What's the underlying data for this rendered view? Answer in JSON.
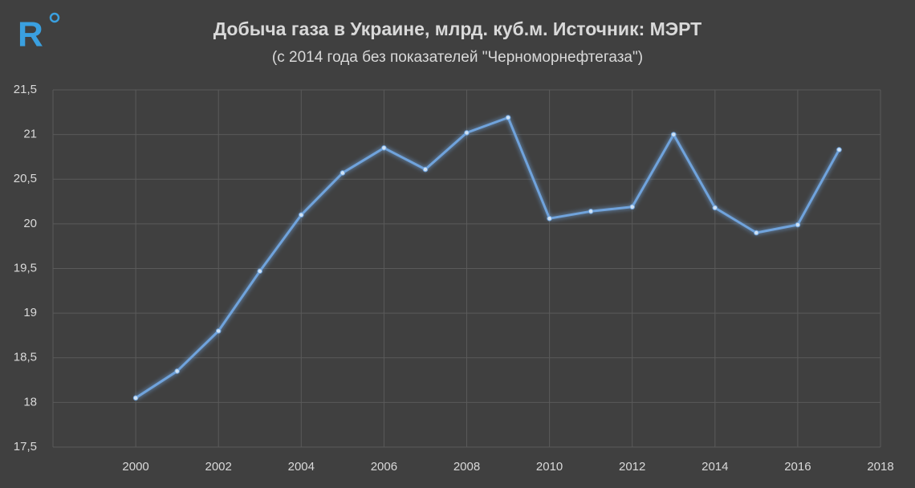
{
  "logo": "R",
  "chart_data": {
    "type": "line",
    "title": "Добыча газа в Украине, млрд. куб.м. Источник: МЭРТ",
    "subtitle": "(с 2014 года без показателей \"Черноморнефтегаза\")",
    "x": [
      2000,
      2001,
      2002,
      2003,
      2004,
      2005,
      2006,
      2007,
      2008,
      2009,
      2010,
      2011,
      2012,
      2013,
      2014,
      2015,
      2016,
      2017
    ],
    "series": [
      {
        "color": "#6fa3dc",
        "values": [
          18.05,
          18.35,
          18.8,
          19.47,
          20.1,
          20.57,
          20.85,
          20.61,
          21.02,
          21.19,
          20.06,
          20.14,
          20.19,
          21.0,
          20.18,
          19.9,
          19.99,
          20.83
        ]
      }
    ],
    "xlim": [
      1998,
      2018
    ],
    "xticks": [
      2000,
      2002,
      2004,
      2006,
      2008,
      2010,
      2012,
      2014,
      2016,
      2018
    ],
    "ylim": [
      17.5,
      21.5
    ],
    "yticks": [
      {
        "value": 17.5,
        "label": "17,5"
      },
      18,
      {
        "value": 18.5,
        "label": "18,5"
      },
      19,
      {
        "value": 19.5,
        "label": "19,5"
      },
      20,
      {
        "value": 20.5,
        "label": "20,5"
      },
      21,
      {
        "value": 21.5,
        "label": "21,5"
      }
    ],
    "grid": true
  }
}
